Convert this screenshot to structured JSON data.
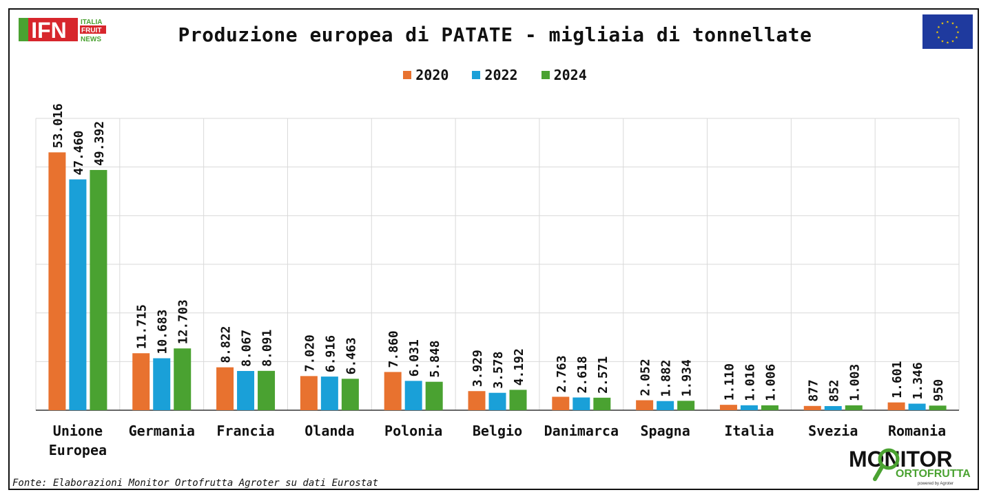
{
  "header": {
    "title": "Produzione europea di PATATE - migliaia di tonnellate",
    "logo_left": {
      "big": "IFN",
      "line1": "ITALIA",
      "line2": "FRUIT",
      "line3": "NEWS"
    },
    "flag_icon": "eu-flag-icon"
  },
  "footer": {
    "source": "Fonte: Elaborazioni Monitor Ortofrutta Agroter su dati Eurostat",
    "logo_right": {
      "word1": "MONITOR",
      "word2": "ORTOFRUTTA",
      "tagline": "powered by Agroter"
    }
  },
  "colors": {
    "s2020": "#E8722F",
    "s2022": "#1AA0D8",
    "s2024": "#4AA231",
    "grid": "#d9d9d9",
    "text": "#111111",
    "logo_red": "#D7262C",
    "logo_green": "#4AA231",
    "flag_blue": "#1F3A9E",
    "flag_star": "#FFD500"
  },
  "chart_data": {
    "type": "bar",
    "title": "Produzione europea di PATATE - migliaia di tonnellate",
    "categories": [
      [
        "Unione",
        "Europea"
      ],
      [
        "Germania"
      ],
      [
        "Francia"
      ],
      [
        "Olanda"
      ],
      [
        "Polonia"
      ],
      [
        "Belgio"
      ],
      [
        "Danimarca"
      ],
      [
        "Spagna"
      ],
      [
        "Italia"
      ],
      [
        "Svezia"
      ],
      [
        "Romania"
      ]
    ],
    "series": [
      {
        "name": "2020",
        "color": "#E8722F",
        "values": [
          53016,
          11715,
          8822,
          7020,
          7860,
          3929,
          2763,
          2052,
          1110,
          877,
          1601
        ],
        "labels": [
          "53.016",
          "11.715",
          "8.822",
          "7.020",
          "7.860",
          "3.929",
          "2.763",
          "2.052",
          "1.110",
          "877",
          "1.601"
        ]
      },
      {
        "name": "2022",
        "color": "#1AA0D8",
        "values": [
          47460,
          10683,
          8067,
          6916,
          6031,
          3578,
          2618,
          1882,
          1016,
          852,
          1346
        ],
        "labels": [
          "47.460",
          "10.683",
          "8.067",
          "6.916",
          "6.031",
          "3.578",
          "2.618",
          "1.882",
          "1.016",
          "852",
          "1.346"
        ]
      },
      {
        "name": "2024",
        "color": "#4AA231",
        "values": [
          49392,
          12703,
          8091,
          6463,
          5848,
          4192,
          2571,
          1934,
          1006,
          1003,
          950
        ],
        "labels": [
          "49.392",
          "12.703",
          "8.091",
          "6.463",
          "5.848",
          "4.192",
          "2.571",
          "1.934",
          "1.006",
          "1.003",
          "950"
        ]
      }
    ],
    "ylim": [
      0,
      60000
    ],
    "grid": true,
    "legend_position": "top-center",
    "xlabel": "",
    "ylabel": ""
  }
}
